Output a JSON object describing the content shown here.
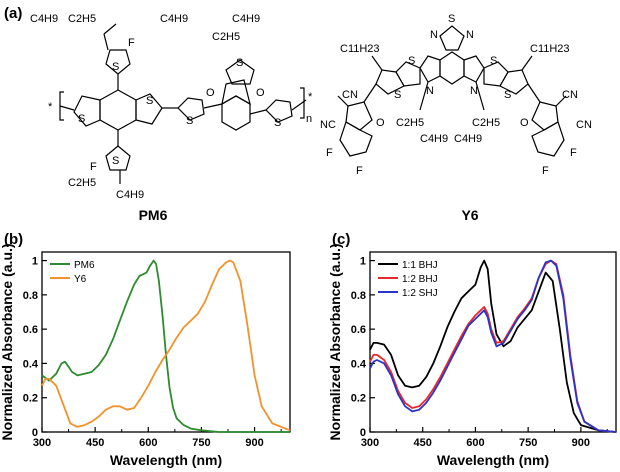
{
  "figure": {
    "panels": {
      "a": {
        "label": "(a)",
        "pm6_name": "PM6",
        "y6_name": "Y6",
        "pm6_atoms": {
          "chain_top_left_1": "C4H9",
          "chain_top_left_2": "C2H5",
          "f_top": "F",
          "s_labels": [
            "S",
            "S",
            "S",
            "S",
            "S",
            "S",
            "S"
          ],
          "chain_top_right_1": "C4H9",
          "chain_top_right_2": "C2H5",
          "chain_top_right_3": "C4H9",
          "o_labels": [
            "O",
            "O"
          ],
          "repeat_left": "*",
          "repeat_right": "*",
          "n_label": "n",
          "f_bottom": "F",
          "chain_bottom_1": "C2H5",
          "chain_bottom_2": "C4H9"
        },
        "y6_atoms": {
          "thiadiazole": [
            "N",
            "S",
            "N"
          ],
          "c11_left": "C11H23",
          "c11_right": "C11H23",
          "cn_labels": [
            "CN",
            "NC",
            "CN",
            "CN"
          ],
          "o_labels": [
            "O",
            "O"
          ],
          "n_labels": [
            "N",
            "N"
          ],
          "s_labels": [
            "S",
            "S",
            "S",
            "S"
          ],
          "f_labels": [
            "F",
            "F",
            "F",
            "F"
          ],
          "chain_labels": [
            "C2H5",
            "C4H9",
            "C2H5",
            "C4H9"
          ]
        }
      },
      "b": {
        "label": "(b)"
      },
      "c": {
        "label": "(c)"
      }
    }
  },
  "chart_data": [
    {
      "panel": "(b)",
      "type": "line",
      "xlabel": "Wavelength (nm)",
      "ylabel": "Normalized Absorbance (a.u.)",
      "xlim": [
        300,
        1000
      ],
      "ylim": [
        0,
        1.05
      ],
      "xticks": [
        300,
        450,
        600,
        750,
        900
      ],
      "yticks": [
        0,
        0.2,
        0.4,
        0.6,
        0.8,
        1
      ],
      "ytick_labels": [
        "0",
        "0.2",
        "0.4",
        "0.6",
        "0.8",
        "1"
      ],
      "legend_position": "top-left",
      "series": [
        {
          "name": "PM6",
          "color": "#2e8b2e",
          "x": [
            300,
            320,
            340,
            355,
            365,
            375,
            385,
            400,
            420,
            440,
            460,
            480,
            500,
            520,
            540,
            560,
            575,
            585,
            595,
            605,
            615,
            622,
            630,
            640,
            650,
            660,
            670,
            680,
            700,
            720,
            750,
            800,
            900,
            1000
          ],
          "y": [
            0.33,
            0.3,
            0.34,
            0.4,
            0.41,
            0.38,
            0.35,
            0.33,
            0.34,
            0.35,
            0.39,
            0.45,
            0.54,
            0.65,
            0.76,
            0.86,
            0.91,
            0.92,
            0.93,
            0.97,
            1.0,
            0.98,
            0.88,
            0.68,
            0.45,
            0.26,
            0.14,
            0.08,
            0.04,
            0.02,
            0.01,
            0.0,
            0.0,
            0.0
          ]
        },
        {
          "name": "Y6",
          "color": "#f2922c",
          "x": [
            300,
            310,
            320,
            340,
            360,
            380,
            400,
            420,
            440,
            460,
            480,
            500,
            520,
            540,
            560,
            580,
            600,
            620,
            640,
            660,
            680,
            700,
            720,
            740,
            760,
            780,
            800,
            820,
            830,
            840,
            860,
            880,
            900,
            920,
            950,
            1000
          ],
          "y": [
            0.27,
            0.31,
            0.31,
            0.27,
            0.16,
            0.05,
            0.03,
            0.04,
            0.06,
            0.09,
            0.13,
            0.15,
            0.15,
            0.13,
            0.14,
            0.2,
            0.27,
            0.35,
            0.42,
            0.48,
            0.55,
            0.61,
            0.65,
            0.69,
            0.76,
            0.86,
            0.95,
            0.99,
            1.0,
            0.99,
            0.88,
            0.62,
            0.33,
            0.15,
            0.05,
            0.01
          ]
        }
      ]
    },
    {
      "panel": "(c)",
      "type": "line",
      "xlabel": "Wavelength (nm)",
      "ylabel": "Normalized Absorbance (a.u.)",
      "xlim": [
        300,
        1000
      ],
      "ylim": [
        0,
        1.05
      ],
      "xticks": [
        300,
        450,
        600,
        750,
        900
      ],
      "yticks": [
        0,
        0.2,
        0.4,
        0.6,
        0.8,
        1
      ],
      "ytick_labels": [
        "0",
        "0.2",
        "0.4",
        "0.6",
        "0.8",
        "1"
      ],
      "legend_position": "top-left",
      "series": [
        {
          "name": "1:1 BHJ",
          "color": "#000000",
          "x": [
            300,
            310,
            320,
            340,
            360,
            380,
            400,
            420,
            440,
            460,
            480,
            500,
            520,
            540,
            560,
            580,
            600,
            615,
            625,
            635,
            645,
            660,
            680,
            700,
            720,
            740,
            760,
            780,
            800,
            820,
            840,
            860,
            880,
            900,
            950,
            1000
          ],
          "y": [
            0.48,
            0.52,
            0.52,
            0.51,
            0.45,
            0.33,
            0.27,
            0.26,
            0.27,
            0.32,
            0.4,
            0.5,
            0.61,
            0.7,
            0.78,
            0.82,
            0.86,
            0.96,
            1.0,
            0.95,
            0.75,
            0.57,
            0.5,
            0.53,
            0.61,
            0.66,
            0.71,
            0.82,
            0.93,
            0.88,
            0.6,
            0.29,
            0.11,
            0.04,
            0.01,
            0.0
          ]
        },
        {
          "name": "1:2 BHJ",
          "color": "#e8282a",
          "x": [
            300,
            310,
            320,
            340,
            360,
            380,
            400,
            420,
            440,
            460,
            480,
            500,
            520,
            540,
            560,
            580,
            600,
            615,
            625,
            635,
            645,
            660,
            680,
            700,
            720,
            740,
            760,
            780,
            800,
            815,
            830,
            850,
            870,
            890,
            910,
            950,
            1000
          ],
          "y": [
            0.41,
            0.45,
            0.45,
            0.42,
            0.35,
            0.24,
            0.17,
            0.14,
            0.15,
            0.19,
            0.25,
            0.32,
            0.4,
            0.48,
            0.56,
            0.63,
            0.68,
            0.71,
            0.73,
            0.69,
            0.6,
            0.52,
            0.53,
            0.6,
            0.67,
            0.72,
            0.78,
            0.9,
            0.98,
            1.0,
            0.98,
            0.8,
            0.45,
            0.18,
            0.06,
            0.01,
            0.0
          ]
        },
        {
          "name": "1:2 SHJ",
          "color": "#2a35c8",
          "x": [
            300,
            310,
            320,
            340,
            360,
            380,
            400,
            420,
            440,
            460,
            480,
            500,
            520,
            540,
            560,
            580,
            600,
            615,
            625,
            635,
            645,
            660,
            680,
            700,
            720,
            740,
            760,
            780,
            800,
            815,
            830,
            850,
            870,
            890,
            910,
            950,
            1000
          ],
          "y": [
            0.37,
            0.41,
            0.42,
            0.4,
            0.33,
            0.22,
            0.15,
            0.12,
            0.13,
            0.17,
            0.23,
            0.3,
            0.38,
            0.46,
            0.54,
            0.62,
            0.66,
            0.69,
            0.71,
            0.67,
            0.58,
            0.5,
            0.52,
            0.59,
            0.66,
            0.71,
            0.77,
            0.9,
            0.99,
            1.0,
            0.97,
            0.78,
            0.43,
            0.17,
            0.06,
            0.01,
            0.0
          ]
        }
      ]
    }
  ]
}
